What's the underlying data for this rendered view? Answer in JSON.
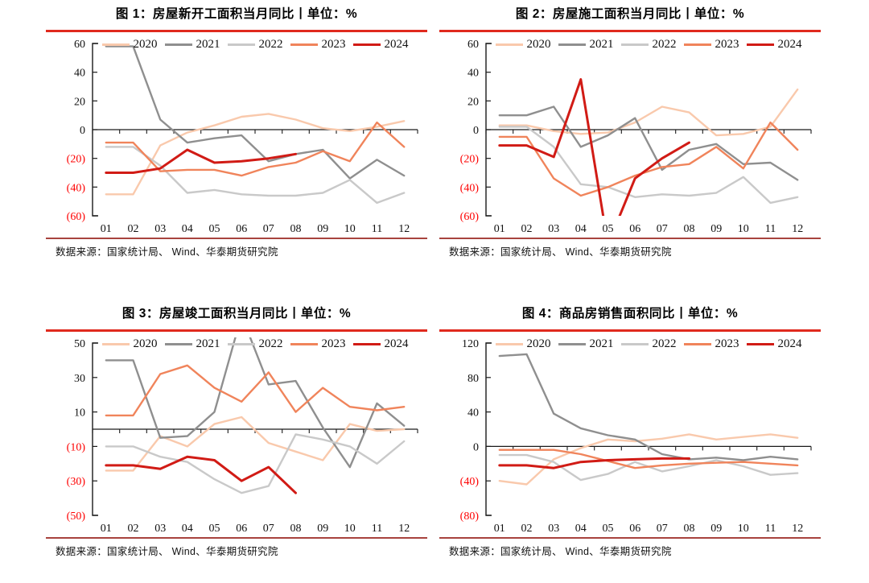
{
  "page": {
    "background": "#ffffff"
  },
  "source_text": "数据来源：国家统计局、 Wind、华泰期货研究院",
  "accent": {
    "title_rule": "#e02a1e",
    "footer_rule": "#a8433e",
    "negative_tick": "#fe0000",
    "axis": "#1a1a1a"
  },
  "legend": {
    "years": [
      "2020",
      "2021",
      "2022",
      "2023",
      "2024"
    ],
    "position": "top-inside"
  },
  "colors": {
    "2020": "#f9c9ac",
    "2021": "#8f8f8f",
    "2022": "#c9c9c9",
    "2023": "#f0845b",
    "2024": "#d11b15"
  },
  "months": [
    "01",
    "02",
    "03",
    "04",
    "05",
    "06",
    "07",
    "08",
    "09",
    "10",
    "11",
    "12"
  ],
  "chart_data": [
    {
      "type": "line",
      "title": "图 1：房屋新开工面积当月同比丨单位：%",
      "unit": "%",
      "ylim": [
        -60,
        60
      ],
      "grid": false,
      "yticks": [
        {
          "value": 60,
          "label": "60"
        },
        {
          "value": 40,
          "label": "40"
        },
        {
          "value": 20,
          "label": "20"
        },
        {
          "value": 0,
          "label": "0"
        },
        {
          "value": -20,
          "label": "(20)"
        },
        {
          "value": -40,
          "label": "(40)"
        },
        {
          "value": -60,
          "label": "(60)"
        }
      ],
      "categories": [
        "01",
        "02",
        "03",
        "04",
        "05",
        "06",
        "07",
        "08",
        "09",
        "10",
        "11",
        "12"
      ],
      "series": [
        {
          "name": "2020",
          "color": "#f9c9ac",
          "values": [
            -45,
            -45,
            -11,
            -2,
            3,
            9,
            11,
            7,
            1,
            -1,
            2,
            6
          ]
        },
        {
          "name": "2021",
          "color": "#8f8f8f",
          "values": [
            58,
            58,
            7,
            -9,
            -6,
            -4,
            -22,
            -17,
            -14,
            -34,
            -21,
            -32
          ]
        },
        {
          "name": "2022",
          "color": "#c9c9c9",
          "values": [
            -12,
            -12,
            -25,
            -44,
            -42,
            -45,
            -46,
            -46,
            -44,
            -35,
            -51,
            -44
          ]
        },
        {
          "name": "2023",
          "color": "#f0845b",
          "values": [
            -9,
            -9,
            -29,
            -28,
            -28,
            -32,
            -26,
            -23,
            -15,
            -22,
            5,
            -12
          ]
        },
        {
          "name": "2024",
          "color": "#d11b15",
          "values": [
            -30,
            -30,
            -27,
            -14,
            -23,
            -22,
            -20,
            -17
          ]
        }
      ]
    },
    {
      "type": "line",
      "title": "图 2：房屋施工面积当月同比丨单位：%",
      "unit": "%",
      "ylim": [
        -60,
        60
      ],
      "grid": false,
      "yticks": [
        {
          "value": 60,
          "label": "60"
        },
        {
          "value": 40,
          "label": "40"
        },
        {
          "value": 20,
          "label": "20"
        },
        {
          "value": 0,
          "label": "0"
        },
        {
          "value": -20,
          "label": "(20)"
        },
        {
          "value": -40,
          "label": "(40)"
        },
        {
          "value": -60,
          "label": "(60)"
        }
      ],
      "categories": [
        "01",
        "02",
        "03",
        "04",
        "05",
        "06",
        "07",
        "08",
        "09",
        "10",
        "11",
        "12"
      ],
      "series": [
        {
          "name": "2020",
          "color": "#f9c9ac",
          "values": [
            3,
            3,
            -1,
            -3,
            -2,
            5,
            16,
            12,
            -4,
            -3,
            2,
            28
          ]
        },
        {
          "name": "2021",
          "color": "#8f8f8f",
          "values": [
            10,
            10,
            16,
            -12,
            -4,
            8,
            -28,
            -14,
            -10,
            -24,
            -23,
            -35
          ]
        },
        {
          "name": "2022",
          "color": "#c9c9c9",
          "values": [
            2,
            2,
            -12,
            -38,
            -40,
            -47,
            -45,
            -46,
            -44,
            -33,
            -51,
            -47
          ]
        },
        {
          "name": "2023",
          "color": "#f0845b",
          "values": [
            -5,
            -5,
            -34,
            -46,
            -40,
            -32,
            -26,
            -24,
            -12,
            -27,
            5,
            -14
          ]
        },
        {
          "name": "2024",
          "color": "#d11b15",
          "values": [
            -11,
            -11,
            -19,
            35,
            -80,
            -34,
            -20,
            -9
          ]
        }
      ]
    },
    {
      "type": "line",
      "title": "图 3：房屋竣工面积当月同比丨单位：%",
      "unit": "%",
      "ylim": [
        -50,
        50
      ],
      "grid": false,
      "yticks": [
        {
          "value": 50,
          "label": "50"
        },
        {
          "value": 30,
          "label": "30"
        },
        {
          "value": 10,
          "label": "10"
        },
        {
          "value": -10,
          "label": "(10)"
        },
        {
          "value": -30,
          "label": "(30)"
        },
        {
          "value": -50,
          "label": "(50)"
        }
      ],
      "categories": [
        "01",
        "02",
        "03",
        "04",
        "05",
        "06",
        "07",
        "08",
        "09",
        "10",
        "11",
        "12"
      ],
      "series": [
        {
          "name": "2020",
          "color": "#f9c9ac",
          "values": [
            -24,
            -24,
            -4,
            -10,
            3,
            7,
            -8,
            -13,
            -18,
            3,
            -1,
            0
          ]
        },
        {
          "name": "2021",
          "color": "#8f8f8f",
          "values": [
            40,
            40,
            -5,
            -4,
            10,
            66,
            26,
            28,
            1,
            -22,
            15,
            2
          ]
        },
        {
          "name": "2022",
          "color": "#c9c9c9",
          "values": [
            -10,
            -10,
            -16,
            -19,
            -29,
            -37,
            -33,
            -3,
            -6,
            -10,
            -20,
            -7
          ]
        },
        {
          "name": "2023",
          "color": "#f0845b",
          "values": [
            8,
            8,
            32,
            37,
            24,
            16,
            33,
            10,
            24,
            13,
            11,
            13
          ]
        },
        {
          "name": "2024",
          "color": "#d11b15",
          "values": [
            -21,
            -21,
            -23,
            -16,
            -18,
            -30,
            -22,
            -37
          ]
        }
      ]
    },
    {
      "type": "line",
      "title": "图 4：商品房销售面积同比丨单位：%",
      "unit": "%",
      "ylim": [
        -80,
        120
      ],
      "grid": false,
      "yticks": [
        {
          "value": 120,
          "label": "120"
        },
        {
          "value": 80,
          "label": "80"
        },
        {
          "value": 40,
          "label": "40"
        },
        {
          "value": 0,
          "label": "0"
        },
        {
          "value": -40,
          "label": "(40)"
        },
        {
          "value": -80,
          "label": "(80)"
        }
      ],
      "categories": [
        "01",
        "02",
        "03",
        "04",
        "05",
        "06",
        "07",
        "08",
        "09",
        "10",
        "11",
        "12"
      ],
      "series": [
        {
          "name": "2020",
          "color": "#f9c9ac",
          "values": [
            -40,
            -44,
            -15,
            -2,
            8,
            6,
            9,
            14,
            8,
            11,
            14,
            10
          ]
        },
        {
          "name": "2021",
          "color": "#8f8f8f",
          "values": [
            105,
            107,
            38,
            21,
            13,
            8,
            -9,
            -15,
            -13,
            -16,
            -12,
            -15
          ]
        },
        {
          "name": "2022",
          "color": "#c9c9c9",
          "values": [
            -10,
            -10,
            -18,
            -39,
            -32,
            -18,
            -29,
            -23,
            -16,
            -23,
            -33,
            -31
          ]
        },
        {
          "name": "2023",
          "color": "#f0845b",
          "values": [
            -4,
            -4,
            -4,
            -9,
            -17,
            -25,
            -22,
            -20,
            -19,
            -18,
            -20,
            -22
          ]
        },
        {
          "name": "2024",
          "color": "#d11b15",
          "values": [
            -22,
            -22,
            -25,
            -18,
            -16,
            -15,
            -14,
            -14
          ]
        }
      ]
    }
  ]
}
